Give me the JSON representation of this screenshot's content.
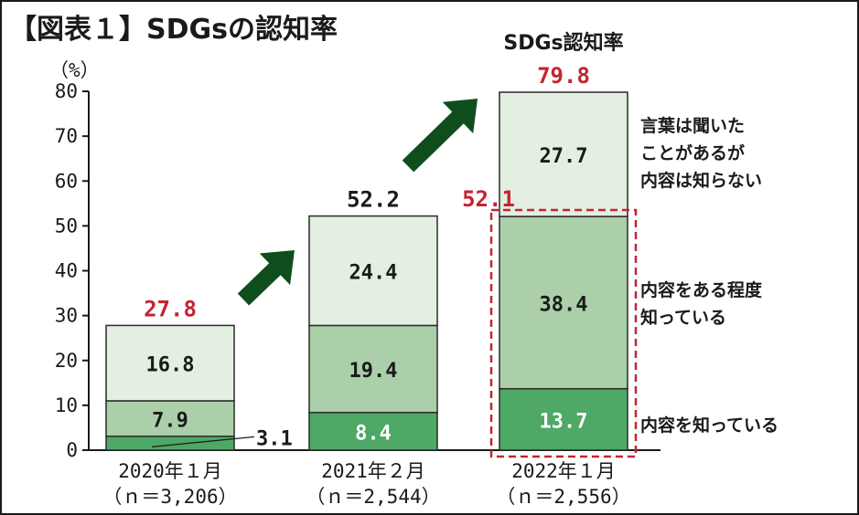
{
  "title": "【図表１】SDGsの認知率",
  "colors": {
    "aware_only": "#e3efe0",
    "somewhat": "#abcfa9",
    "know": "#4ea866",
    "arrow": "#0f4e1c",
    "highlight": "#c42431",
    "text": "#1a1a1a"
  },
  "annotations": {
    "series_aware_only": [
      "言葉は聞いた",
      "ことがあるが",
      "内容は知らない"
    ],
    "series_somewhat": [
      "内容をある程度",
      "知っている"
    ],
    "series_know": [
      "内容を知っている"
    ]
  },
  "chart_data": {
    "type": "bar",
    "stacked": true,
    "title": "【図表１】SDGsの認知率",
    "subtitle": "SDGs認知率",
    "ylabel": "（%）",
    "ylim": [
      0,
      80
    ],
    "yticks": [
      "0",
      "10",
      "20",
      "30",
      "40",
      "50",
      "60",
      "70",
      "80"
    ],
    "categories": [
      "2020年１月",
      "2021年２月",
      "2022年１月"
    ],
    "sample_sizes": [
      "（ｎ＝3,206）",
      "（ｎ＝2,544）",
      "（ｎ＝2,556）"
    ],
    "series": [
      {
        "name": "内容を知っている",
        "values": [
          3.1,
          8.4,
          13.7
        ],
        "labels": [
          "3.1",
          "8.4",
          "13.7"
        ]
      },
      {
        "name": "内容をある程度知っている",
        "values": [
          7.9,
          19.4,
          38.4
        ],
        "labels": [
          "7.9",
          "19.4",
          "38.4"
        ]
      },
      {
        "name": "言葉は聞いたことがあるが内容は知らない",
        "values": [
          16.8,
          24.4,
          27.7
        ],
        "labels": [
          "16.8",
          "24.4",
          "27.7"
        ]
      }
    ],
    "totals": [
      "27.8",
      "52.2",
      "79.8"
    ],
    "highlight_total": "52.1",
    "grid": false,
    "legend": "right"
  }
}
